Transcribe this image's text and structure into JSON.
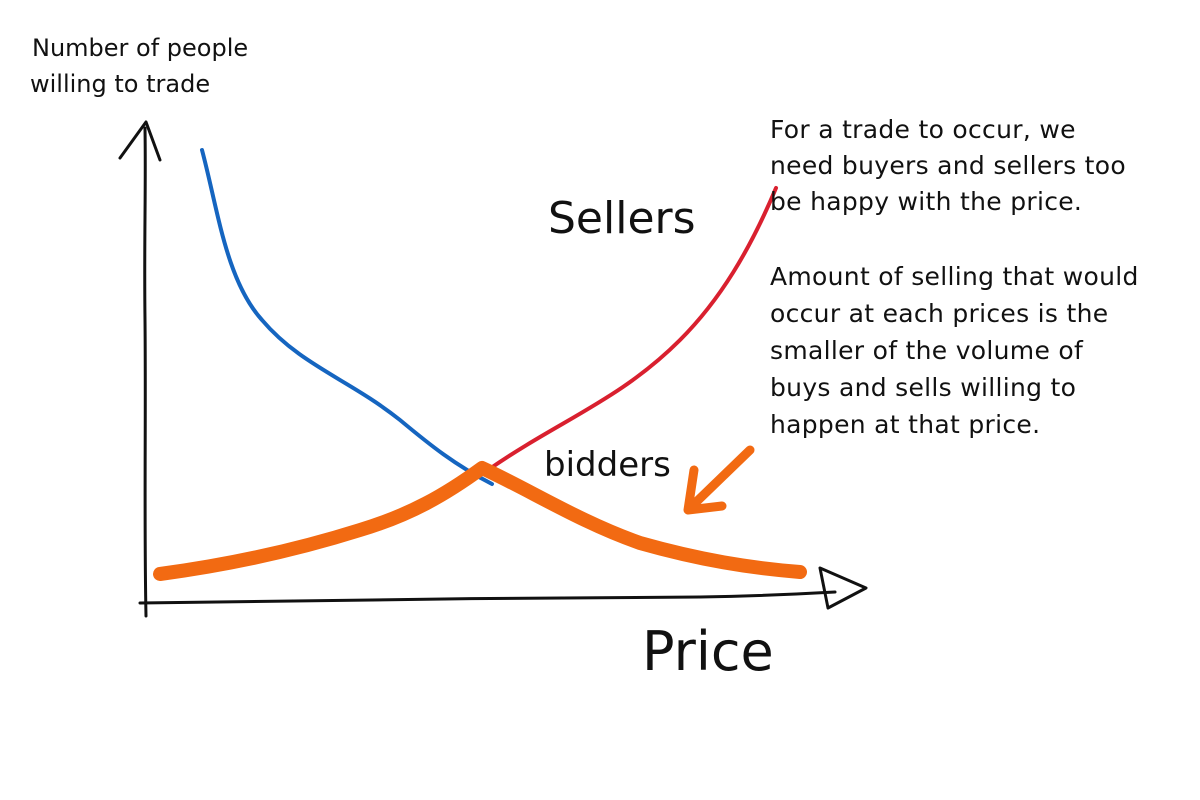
{
  "y_axis_label_lines": [
    "Number of people",
    "willing to trade"
  ],
  "x_axis_label": "Price",
  "sellers_label": "Sellers",
  "bidders_label": "bidders",
  "note_top_lines": [
    "For a trade to occur, we",
    "need buyers and sellers too",
    "be happy with the price."
  ],
  "note_bottom_lines": [
    "Amount of selling that would",
    "occur at each prices is the",
    "smaller of the volume of",
    "buys and sells willing to",
    "happen at that price."
  ],
  "colors": {
    "sellers": "#d9202f",
    "bidders": "#1565c0",
    "trade_volume": "#f26a12",
    "axis": "#111111"
  }
}
